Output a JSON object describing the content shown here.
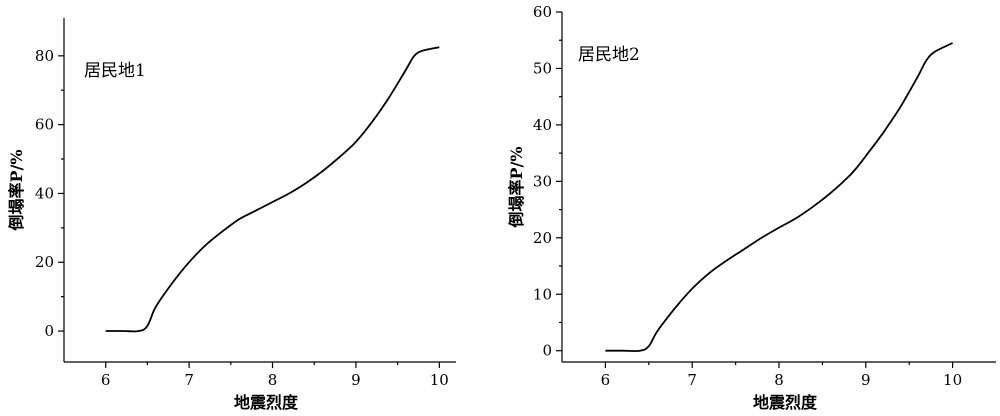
{
  "chart_data": [
    {
      "type": "line",
      "annotation": "居民地1",
      "xlabel": "地震烈度",
      "ylabel": "倒塌率P/%",
      "xlim": [
        5.5,
        10.2
      ],
      "ylim": [
        -9,
        91
      ],
      "xticks": [
        6,
        7,
        8,
        9,
        10
      ],
      "yticks": [
        0,
        20,
        40,
        60,
        80
      ],
      "grid": false,
      "series": [
        {
          "x": [
            6.0,
            6.2,
            6.4,
            6.5,
            6.6,
            6.8,
            7.0,
            7.2,
            7.4,
            7.6,
            7.8,
            8.0,
            8.2,
            8.4,
            8.6,
            8.8,
            9.0,
            9.2,
            9.4,
            9.6,
            9.7,
            9.8,
            10.0
          ],
          "y": [
            0,
            0,
            0,
            1.5,
            7,
            14,
            20,
            25,
            29,
            32.5,
            35,
            37.5,
            40,
            43,
            46.5,
            50.5,
            55,
            61,
            68,
            76,
            80,
            81.5,
            82.5
          ]
        }
      ]
    },
    {
      "type": "line",
      "annotation": "居民地2",
      "xlabel": "地震烈度",
      "ylabel": "倒塌率P/%",
      "xlim": [
        5.5,
        10.5
      ],
      "ylim": [
        -2,
        60
      ],
      "xticks": [
        6,
        7,
        8,
        9,
        10
      ],
      "yticks": [
        0,
        10,
        20,
        30,
        40,
        50,
        60
      ],
      "grid": false,
      "series": [
        {
          "x": [
            6.0,
            6.2,
            6.4,
            6.5,
            6.6,
            6.8,
            7.0,
            7.2,
            7.4,
            7.6,
            7.8,
            8.0,
            8.2,
            8.4,
            8.6,
            8.8,
            8.9,
            9.0,
            9.2,
            9.4,
            9.6,
            9.7,
            9.8,
            10.0
          ],
          "y": [
            0,
            0,
            0,
            0.8,
            3.5,
            7.5,
            11,
            13.8,
            16,
            18,
            20,
            21.8,
            23.5,
            25.6,
            28,
            30.8,
            32.5,
            34.5,
            38.6,
            43.2,
            48.6,
            51.5,
            53,
            54.5
          ]
        }
      ]
    }
  ]
}
